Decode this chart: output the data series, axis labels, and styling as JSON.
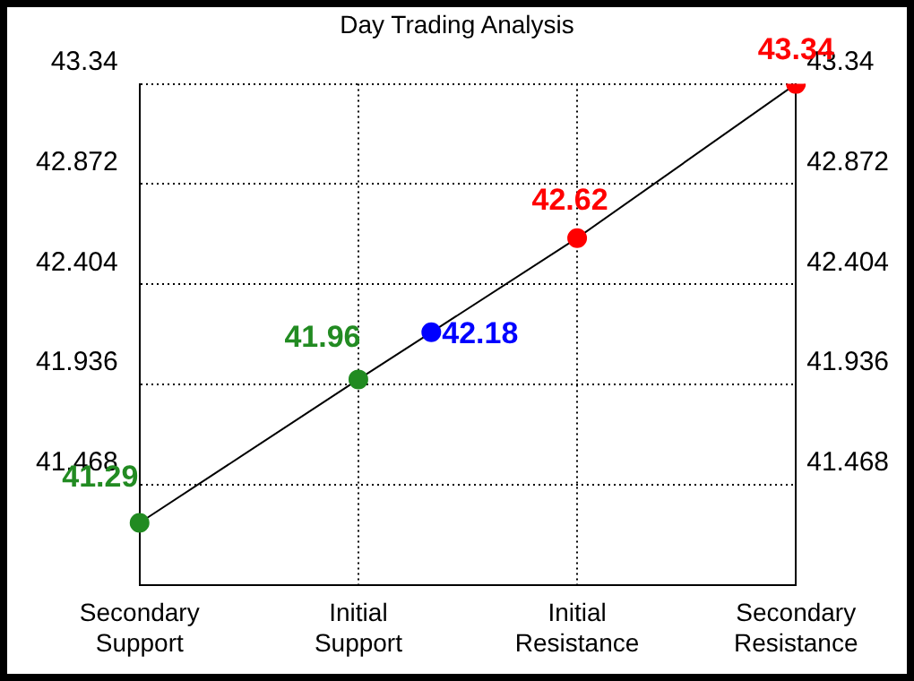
{
  "chart_data": {
    "type": "line",
    "title": "Day Trading Analysis",
    "categories": [
      "Secondary Support",
      null,
      null,
      "Initial Support",
      null,
      null,
      "Initial Resistance",
      null,
      null,
      "Secondary Resistance"
    ],
    "ylim": [
      41,
      43.34
    ],
    "yticks": [
      41.468,
      41.936,
      42.404,
      42.872,
      43.34
    ],
    "y2lim": [
      41,
      43.34
    ],
    "y2ticks": [
      41.468,
      41.936,
      42.404,
      42.872,
      43.34
    ],
    "series": [
      {
        "color": "#000000",
        "colors": [
          "#228b22",
          null,
          null,
          "#228b22",
          "#0000ff",
          null,
          "#ff0000",
          null,
          null,
          "#ff0000"
        ],
        "values": [
          41.29,
          null,
          null,
          41.96,
          42.18,
          null,
          42.62,
          null,
          null,
          43.34
        ]
      }
    ],
    "data_labels": true,
    "marker": "circle",
    "grid": true,
    "legend": false
  }
}
